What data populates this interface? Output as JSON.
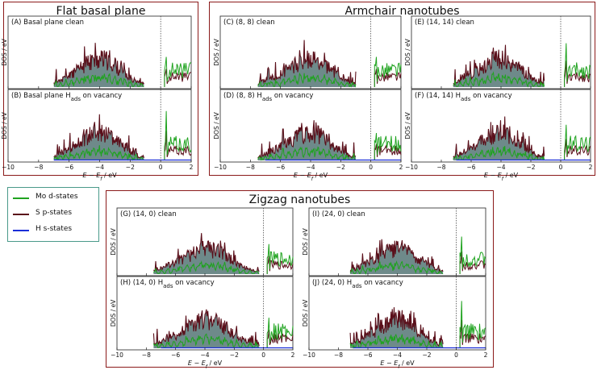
{
  "groups": {
    "flat": {
      "title": "Flat basal plane"
    },
    "armchair": {
      "title": "Armchair nanotubes"
    },
    "zigzag": {
      "title": "Zigzag nanotubes"
    }
  },
  "legend": {
    "mo": {
      "label": "Mo d-states",
      "color": "#1fa31f"
    },
    "s": {
      "label": "S p-states",
      "color": "#5a0f1a"
    },
    "h": {
      "label": "H s-states",
      "color": "#1a2ed8"
    }
  },
  "axes": {
    "xlabel_main": "E − E",
    "xlabel_sub": "f",
    "xlabel_unit": " / eV",
    "ylabel": "DOS / eV",
    "ticks": [
      -10,
      -8,
      -6,
      -4,
      -2,
      0,
      2
    ],
    "tick_labels": [
      "−10",
      "−8",
      "−6",
      "−4",
      "−2",
      "0",
      "2"
    ]
  },
  "chart_data": [
    {
      "type": "area",
      "panel": "A",
      "title": "(A) Basal plane clean",
      "hads": false,
      "xlim": [
        -10,
        2
      ],
      "series": [
        "S p-states",
        "Mo d-states"
      ],
      "band_start": -7.0,
      "band_end": -1.1,
      "seed": 11,
      "ms_peak": 0.55
    },
    {
      "type": "area",
      "panel": "B",
      "title_pre": "(B) Basal plane H",
      "title_sub": "ads",
      "title_post": " on vacancy",
      "hads": true,
      "xlim": [
        -10,
        2
      ],
      "series": [
        "S p-states",
        "Mo d-states",
        "H s-states"
      ],
      "band_start": -7.0,
      "band_end": -1.1,
      "seed": 12,
      "ms_peak": 0.9
    },
    {
      "type": "area",
      "panel": "C",
      "title": "(C) (8, 8) clean",
      "hads": false,
      "xlim": [
        -10,
        2
      ],
      "series": [
        "S p-states",
        "Mo d-states"
      ],
      "band_start": -7.5,
      "band_end": -1.0,
      "seed": 21,
      "ms_peak": 0.55
    },
    {
      "type": "area",
      "panel": "D",
      "title_pre": "(D) (8, 8) H",
      "title_sub": "ads",
      "title_post": " on vacancy",
      "hads": true,
      "xlim": [
        -10,
        2
      ],
      "series": [
        "S p-states",
        "Mo d-states",
        "H s-states"
      ],
      "band_start": -7.5,
      "band_end": -1.0,
      "seed": 22,
      "ms_peak": 0.5
    },
    {
      "type": "area",
      "panel": "E",
      "title": "(E) (14, 14) clean",
      "hads": false,
      "xlim": [
        -10,
        2
      ],
      "series": [
        "S p-states",
        "Mo d-states"
      ],
      "band_start": -7.2,
      "band_end": -1.1,
      "seed": 31,
      "ms_peak": 0.8
    },
    {
      "type": "area",
      "panel": "F",
      "title_pre": "(F) (14, 14) H",
      "title_sub": "ads",
      "title_post": " on vacancy",
      "hads": true,
      "xlim": [
        -10,
        2
      ],
      "series": [
        "S p-states",
        "Mo d-states",
        "H s-states"
      ],
      "band_start": -7.2,
      "band_end": -1.1,
      "seed": 32,
      "ms_peak": 0.65
    },
    {
      "type": "area",
      "panel": "G",
      "title": "(G) (14, 0) clean",
      "hads": false,
      "xlim": [
        -10,
        2
      ],
      "series": [
        "S p-states",
        "Mo d-states"
      ],
      "band_start": -7.5,
      "band_end": -0.3,
      "seed": 41,
      "ms_peak": 0.6
    },
    {
      "type": "area",
      "panel": "H",
      "title_pre": "(H) (14, 0) H",
      "title_sub": "ads",
      "title_post": " on vacancy",
      "hads": true,
      "xlim": [
        -10,
        2
      ],
      "series": [
        "S p-states",
        "Mo d-states",
        "H s-states"
      ],
      "band_start": -7.5,
      "band_end": -0.3,
      "seed": 42,
      "ms_peak": 0.55
    },
    {
      "type": "area",
      "panel": "I",
      "title": "(I) (24, 0) clean",
      "hads": false,
      "xlim": [
        -10,
        2
      ],
      "series": [
        "S p-states",
        "Mo d-states"
      ],
      "band_start": -7.2,
      "band_end": -0.9,
      "seed": 51,
      "ms_peak": 0.75
    },
    {
      "type": "area",
      "panel": "J",
      "title_pre": "(J) (24, 0) H",
      "title_sub": "ads",
      "title_post": " on vacancy",
      "hads": true,
      "xlim": [
        -10,
        2
      ],
      "series": [
        "S p-states",
        "Mo d-states",
        "H s-states"
      ],
      "band_start": -7.2,
      "band_end": -0.9,
      "seed": 52,
      "ms_peak": 0.85
    }
  ]
}
